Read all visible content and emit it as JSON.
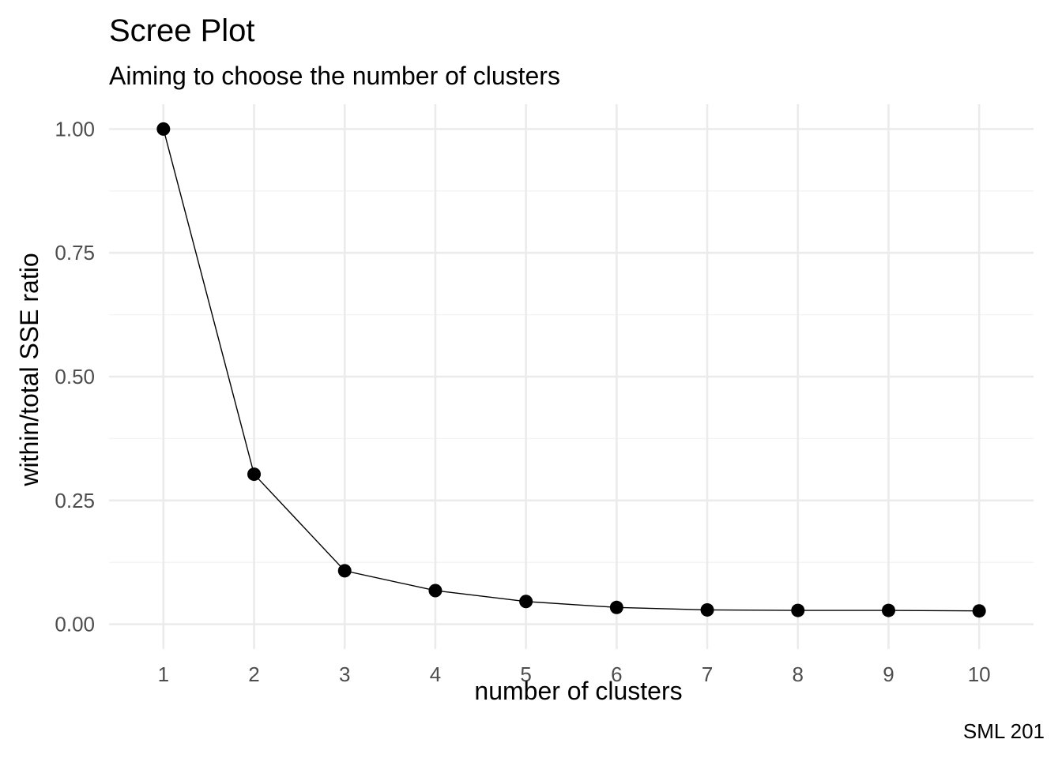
{
  "chart_data": {
    "type": "line",
    "title": "Scree Plot",
    "subtitle": "Aiming to choose the number of clusters",
    "xlabel": "number of clusters",
    "ylabel": "within/total SSE ratio",
    "caption": "SML 201",
    "x": [
      1,
      2,
      3,
      4,
      5,
      6,
      7,
      8,
      9,
      10
    ],
    "series": [
      {
        "values": [
          1.0,
          0.303,
          0.108,
          0.068,
          0.046,
          0.034,
          0.029,
          0.028,
          0.028,
          0.027
        ]
      }
    ],
    "xlim": [
      0.4,
      10.6
    ],
    "ylim": [
      -0.05,
      1.05
    ],
    "x_ticks": [
      "1",
      "2",
      "3",
      "4",
      "5",
      "6",
      "7",
      "8",
      "9",
      "10"
    ],
    "y_ticks": [
      "0.00",
      "0.25",
      "0.50",
      "0.75",
      "1.00"
    ],
    "y_tick_values": [
      0,
      0.25,
      0.5,
      0.75,
      1.0
    ],
    "grid": true,
    "legend": "none",
    "colors": {
      "series": "#000000",
      "grid_major": "#ebebeb",
      "grid_minor": "#f3f3f3",
      "tick_text": "#4d4d4d"
    }
  }
}
